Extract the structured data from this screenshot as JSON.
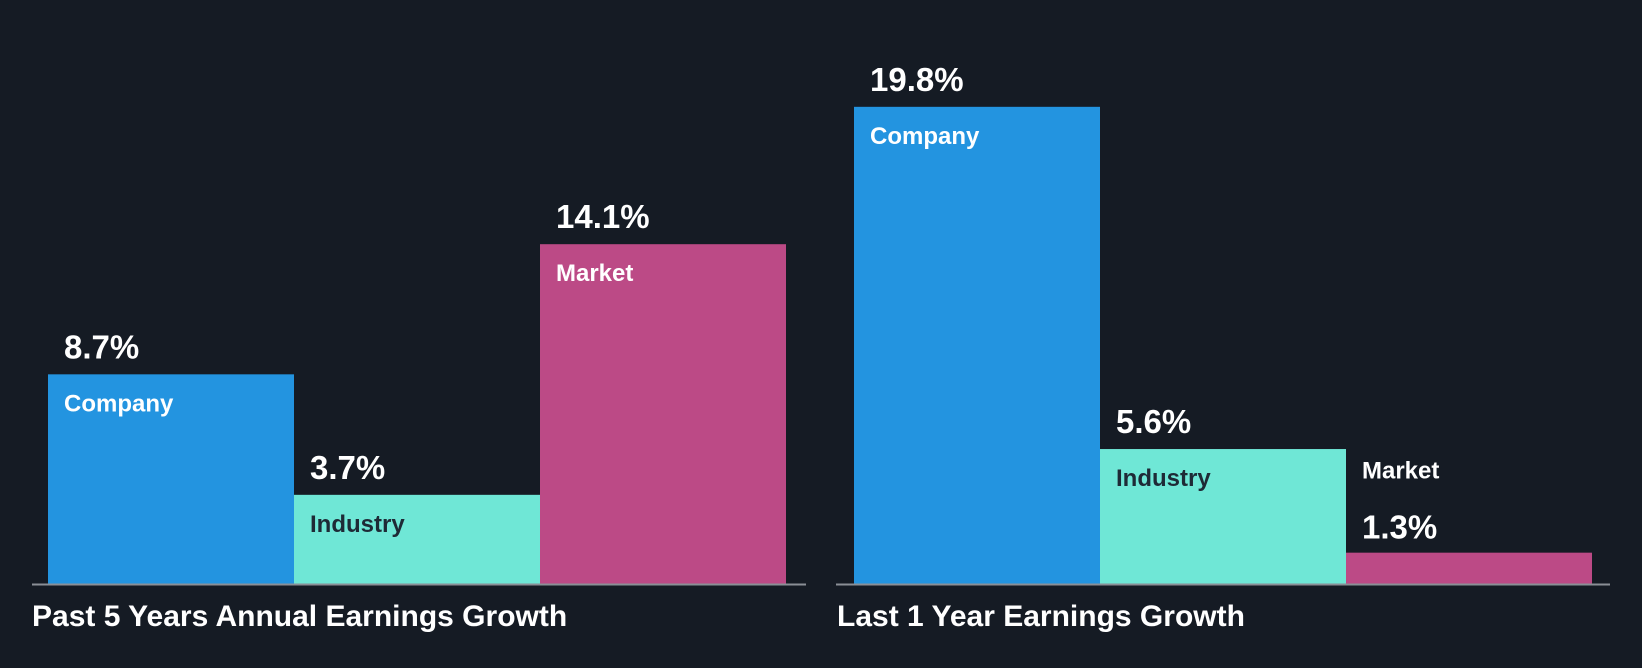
{
  "chart_data": [
    {
      "type": "bar",
      "title": "Past 5 Years Annual Earnings Growth",
      "categories": [
        "Company",
        "Industry",
        "Market"
      ],
      "values": [
        8.7,
        3.7,
        14.1
      ],
      "value_labels": [
        "8.7%",
        "3.7%",
        "14.1%"
      ],
      "unit": "%",
      "ylim": [
        0,
        20.8
      ],
      "grid": false,
      "legend": "none"
    },
    {
      "type": "bar",
      "title": "Last 1 Year Earnings Growth",
      "categories": [
        "Company",
        "Industry",
        "Market"
      ],
      "values": [
        19.8,
        5.6,
        1.3
      ],
      "value_labels": [
        "19.8%",
        "5.6%",
        "1.3%"
      ],
      "unit": "%",
      "ylim": [
        0,
        20.8
      ],
      "grid": false,
      "legend": "none"
    }
  ],
  "colors": {
    "background": "#151b24",
    "company": "#2394e0",
    "industry": "#6fe7d6",
    "market": "#bc4a86",
    "axis": "#8a8f96",
    "label_on_blue": "#ffffff",
    "label_on_teal": "#1e2a36",
    "label_on_pink": "#ffffff",
    "value_text": "#ffffff"
  }
}
